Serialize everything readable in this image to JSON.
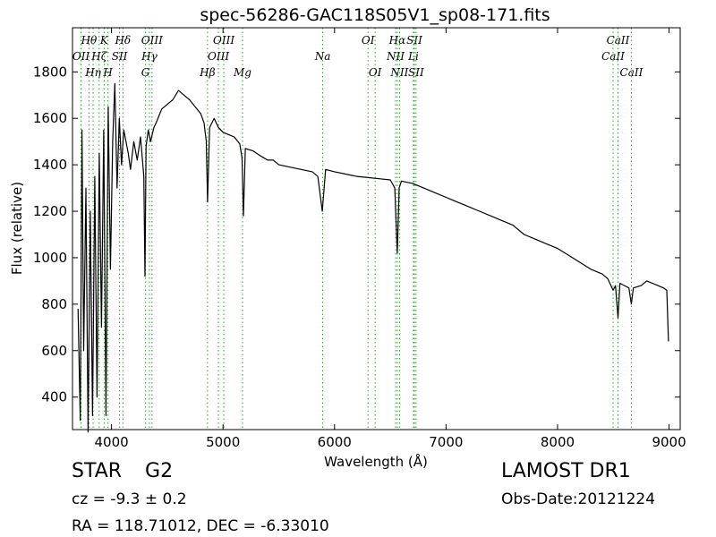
{
  "chart_data": {
    "type": "line",
    "title": "spec-56286-GAC118S05V1_sp08-171.fits",
    "xlabel": "Wavelength (Å)",
    "ylabel": "Flux (relative)",
    "xlim": [
      3650,
      9100
    ],
    "ylim": [
      260,
      1990
    ],
    "xticks": [
      4000,
      5000,
      6000,
      7000,
      8000,
      9000
    ],
    "yticks": [
      400,
      600,
      800,
      1000,
      1200,
      1400,
      1600,
      1800
    ],
    "grid": false,
    "series_color": "#000000",
    "line_color": "#2ca02c",
    "series": [
      {
        "x": [
          3700,
          3720,
          3735,
          3750,
          3770,
          3790,
          3810,
          3830,
          3850,
          3870,
          3890,
          3910,
          3930,
          3950,
          3970,
          3990,
          4010,
          4030,
          4050,
          4070,
          4090,
          4110,
          4130,
          4150,
          4170,
          4200,
          4230,
          4260,
          4290,
          4300,
          4310,
          4330,
          4350,
          4380,
          4400,
          4450,
          4500,
          4550,
          4600,
          4650,
          4700,
          4750,
          4800,
          4830,
          4850,
          4861,
          4880,
          4920,
          4960,
          5000,
          5050,
          5100,
          5150,
          5170,
          5183,
          5200,
          5270,
          5330,
          5400,
          5450,
          5500,
          5600,
          5700,
          5800,
          5850,
          5890,
          5920,
          6000,
          6100,
          6200,
          6300,
          6400,
          6500,
          6540,
          6563,
          6580,
          6600,
          6700,
          6800,
          6900,
          7000,
          7100,
          7200,
          7300,
          7400,
          7500,
          7600,
          7700,
          7800,
          7900,
          8000,
          8100,
          8200,
          8300,
          8400,
          8450,
          8498,
          8520,
          8542,
          8560,
          8600,
          8640,
          8662,
          8680,
          8750,
          8800,
          8850,
          8900,
          8950,
          8980,
          8995
        ],
        "values": [
          780,
          300,
          1550,
          600,
          1300,
          250,
          1200,
          320,
          1350,
          400,
          1450,
          700,
          1550,
          320,
          1650,
          950,
          1500,
          1750,
          1300,
          1600,
          1400,
          1550,
          1500,
          1450,
          1380,
          1500,
          1420,
          1520,
          1350,
          920,
          1480,
          1550,
          1500,
          1560,
          1580,
          1640,
          1660,
          1680,
          1720,
          1700,
          1680,
          1650,
          1620,
          1580,
          1500,
          1240,
          1560,
          1600,
          1560,
          1540,
          1530,
          1520,
          1490,
          1430,
          1180,
          1470,
          1460,
          1440,
          1420,
          1420,
          1400,
          1390,
          1380,
          1370,
          1350,
          1200,
          1380,
          1370,
          1360,
          1350,
          1345,
          1340,
          1335,
          1300,
          1020,
          1300,
          1330,
          1320,
          1300,
          1280,
          1260,
          1240,
          1220,
          1200,
          1180,
          1160,
          1140,
          1100,
          1080,
          1060,
          1040,
          1010,
          980,
          950,
          930,
          910,
          860,
          880,
          740,
          890,
          880,
          870,
          800,
          870,
          880,
          900,
          890,
          880,
          870,
          860,
          640
        ]
      }
    ],
    "lines": [
      {
        "name": "OIII",
        "wavelength": 3727,
        "row": 1,
        "show_label": false
      },
      {
        "name": "OII",
        "wavelength": 3727,
        "row": 1,
        "show_label": true
      },
      {
        "name": "Hθ",
        "wavelength": 3798,
        "row": 0,
        "show_label": true
      },
      {
        "name": "Hη",
        "wavelength": 3835,
        "row": 2,
        "show_label": true
      },
      {
        "name": "Hζ",
        "wavelength": 3889,
        "row": 1,
        "show_label": true
      },
      {
        "name": "K",
        "wavelength": 3934,
        "row": 0,
        "show_label": true
      },
      {
        "name": "H",
        "wavelength": 3968,
        "row": 2,
        "show_label": true
      },
      {
        "name": "SII",
        "wavelength": 4072,
        "row": 1,
        "show_label": true
      },
      {
        "name": "Hδ",
        "wavelength": 4102,
        "row": 0,
        "show_label": true
      },
      {
        "name": "G",
        "wavelength": 4305,
        "row": 2,
        "show_label": true
      },
      {
        "name": "Hγ",
        "wavelength": 4340,
        "row": 1,
        "show_label": true
      },
      {
        "name": "OIII",
        "wavelength": 4363,
        "row": 0,
        "show_label": true
      },
      {
        "name": "Hβ",
        "wavelength": 4861,
        "row": 2,
        "show_label": true
      },
      {
        "name": "OIII",
        "wavelength": 4959,
        "row": 1,
        "show_label": true
      },
      {
        "name": "OIII",
        "wavelength": 5007,
        "row": 0,
        "show_label": true
      },
      {
        "name": "Mg",
        "wavelength": 5175,
        "row": 2,
        "show_label": true
      },
      {
        "name": "Na",
        "wavelength": 5894,
        "row": 1,
        "show_label": true
      },
      {
        "name": "OI",
        "wavelength": 6300,
        "row": 0,
        "show_label": true
      },
      {
        "name": "OI",
        "wavelength": 6364,
        "row": 2,
        "show_label": true
      },
      {
        "name": "NII",
        "wavelength": 6548,
        "row": 1,
        "show_label": true
      },
      {
        "name": "Hα",
        "wavelength": 6563,
        "row": 0,
        "show_label": true
      },
      {
        "name": "NII",
        "wavelength": 6583,
        "row": 2,
        "show_label": true
      },
      {
        "name": "Li",
        "wavelength": 6708,
        "row": 1,
        "show_label": true
      },
      {
        "name": "SII",
        "wavelength": 6716,
        "row": 0,
        "show_label": true
      },
      {
        "name": "SII",
        "wavelength": 6731,
        "row": 2,
        "show_label": true
      },
      {
        "name": "CaII",
        "wavelength": 8498,
        "row": 1,
        "show_label": true
      },
      {
        "name": "CaII",
        "wavelength": 8542,
        "row": 0,
        "show_label": true
      },
      {
        "name": "CaII",
        "wavelength": 8662,
        "row": 2,
        "show_label": true
      }
    ]
  },
  "info": {
    "class": "STAR",
    "subclass": "G2",
    "survey": "LAMOST DR1",
    "cz": "cz = -9.3 ± 0.2",
    "obs_date": "Obs-Date:20121224",
    "coords": "RA = 118.71012, DEC = -6.33010"
  }
}
